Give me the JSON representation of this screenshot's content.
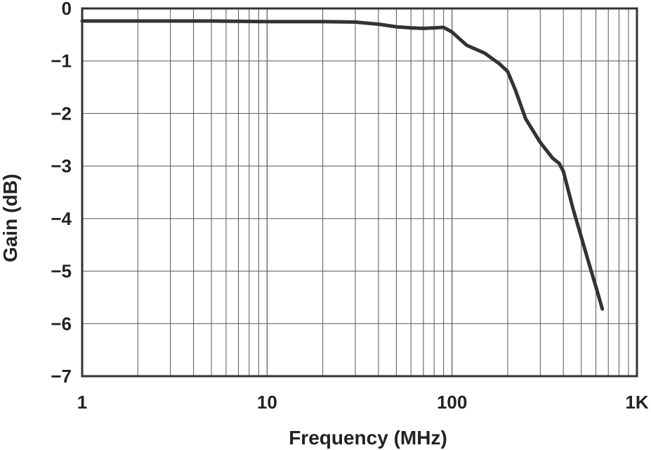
{
  "chart_data": {
    "type": "line",
    "title": "",
    "xlabel": "Frequency (MHz)",
    "ylabel": "Gain (dB)",
    "x_scale": "log",
    "xlim": [
      1,
      1000
    ],
    "ylim": [
      -7,
      0
    ],
    "grid": true,
    "x_ticks": [
      {
        "value": 1,
        "label": "1"
      },
      {
        "value": 10,
        "label": "10"
      },
      {
        "value": 100,
        "label": "100"
      },
      {
        "value": 1000,
        "label": "1K"
      }
    ],
    "y_ticks": [
      {
        "value": 0,
        "label": "0"
      },
      {
        "value": -1,
        "label": "−1"
      },
      {
        "value": -2,
        "label": "−2"
      },
      {
        "value": -3,
        "label": "−3"
      },
      {
        "value": -4,
        "label": "−4"
      },
      {
        "value": -5,
        "label": "−5"
      },
      {
        "value": -6,
        "label": "−6"
      },
      {
        "value": -7,
        "label": "−7"
      }
    ],
    "series": [
      {
        "color": "#333333",
        "x": [
          1,
          2,
          5,
          10,
          20,
          30,
          40,
          50,
          60,
          70,
          80,
          90,
          100,
          120,
          150,
          180,
          200,
          220,
          250,
          300,
          350,
          380,
          400,
          450,
          500,
          550,
          600,
          650
        ],
        "y": [
          -0.24,
          -0.24,
          -0.24,
          -0.25,
          -0.25,
          -0.26,
          -0.3,
          -0.35,
          -0.37,
          -0.38,
          -0.37,
          -0.36,
          -0.45,
          -0.7,
          -0.85,
          -1.05,
          -1.2,
          -1.55,
          -2.1,
          -2.55,
          -2.85,
          -2.95,
          -3.1,
          -3.8,
          -4.35,
          -4.85,
          -5.3,
          -5.72
        ]
      }
    ]
  }
}
